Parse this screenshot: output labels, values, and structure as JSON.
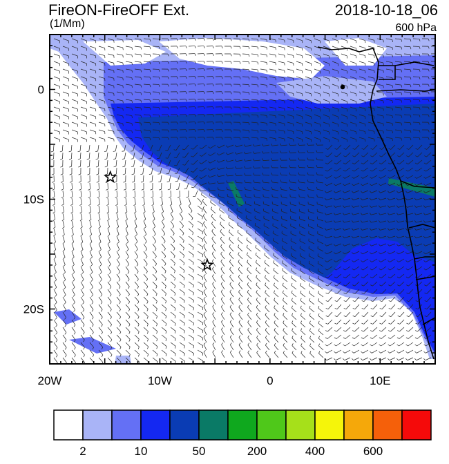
{
  "title": "FireON-FireOFF Ext.",
  "units": "(1/Mm)",
  "datetime": "2018-10-18_06",
  "level": "600 hPa",
  "map": {
    "lon_range": [
      -20,
      15
    ],
    "lat_range": [
      -25,
      5
    ],
    "lat_ticks": [
      {
        "value": 0,
        "label": "0"
      },
      {
        "value": -10,
        "label": "10S"
      },
      {
        "value": -20,
        "label": "20S"
      }
    ],
    "lon_ticks": [
      {
        "value": -20,
        "label": "20W"
      },
      {
        "value": -10,
        "label": "10W"
      },
      {
        "value": 0,
        "label": "0"
      },
      {
        "value": 10,
        "label": "10E"
      }
    ],
    "stars": [
      {
        "lon": -14.5,
        "lat": -8
      },
      {
        "lon": -5.7,
        "lat": -16
      }
    ]
  },
  "colorbar": {
    "colors": [
      "#ffffff",
      "#a9b4f7",
      "#6470f5",
      "#1428f2",
      "#0a3cb4",
      "#0a7a66",
      "#0fa81e",
      "#4fc81a",
      "#a6e01a",
      "#f5f50a",
      "#f5a80a",
      "#f5600a",
      "#f50a0a"
    ],
    "labels": [
      {
        "after_box": 1,
        "text": "2"
      },
      {
        "after_box": 3,
        "text": "10"
      },
      {
        "after_box": 5,
        "text": "50"
      },
      {
        "after_box": 7,
        "text": "200"
      },
      {
        "after_box": 9,
        "text": "400"
      },
      {
        "after_box": 11,
        "text": "600"
      }
    ]
  }
}
